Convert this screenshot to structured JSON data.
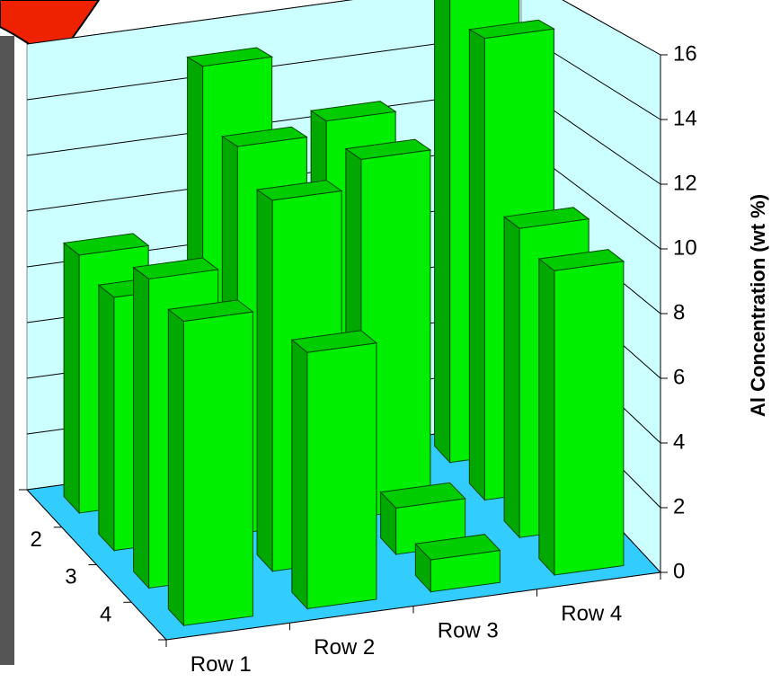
{
  "chart_data": {
    "type": "bar3d",
    "y_label": "Al Concentration (wt %)",
    "categories": [
      "Row 1",
      "Row 2",
      "Row 3",
      "Row 4"
    ],
    "series": [
      {
        "name": null,
        "color": "#00ee00",
        "values": [
          9,
          15,
          12.5,
          16.2
        ]
      },
      {
        "name": "2",
        "color": "#00ee00",
        "values": [
          8.5,
          13,
          12,
          15.5
        ]
      },
      {
        "name": "3",
        "color": "#00ee00",
        "values": [
          10,
          12,
          1.5,
          10
        ]
      },
      {
        "name": "4",
        "color": "#00ee00",
        "values": [
          9.5,
          8,
          1,
          9.5
        ]
      }
    ],
    "ylim": [
      0,
      16
    ],
    "yticks": [
      0,
      2,
      4,
      6,
      8,
      10,
      12,
      14,
      16
    ],
    "grid": true,
    "floor_color": "#33ccff",
    "wall_color": "#ccffff"
  }
}
